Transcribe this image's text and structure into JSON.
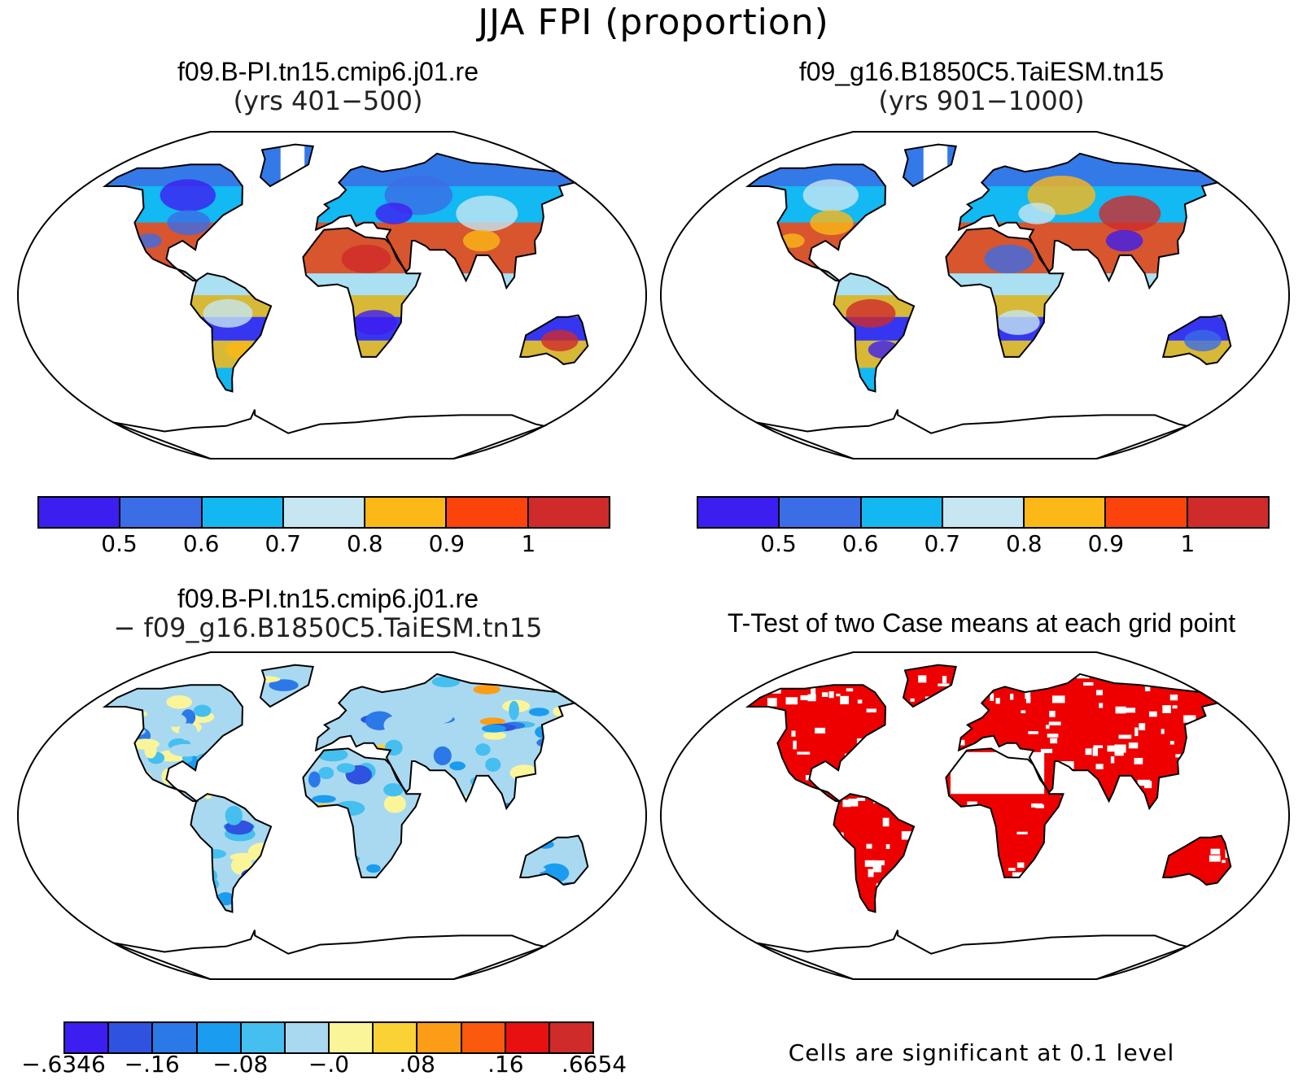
{
  "title": "JJA FPI (proportion)",
  "panels": {
    "top_left": {
      "line1": "f09.B-PI.tn15.cmip6.j01.re",
      "line2": "(yrs 401−500)"
    },
    "top_right": {
      "line1": "f09_g16.B1850C5.TaiESM.tn15",
      "line2": "(yrs 901−1000)"
    },
    "bottom_left": {
      "line1": "f09.B-PI.tn15.cmip6.j01.re",
      "line2": "− f09_g16.B1850C5.TaiESM.tn15"
    },
    "bottom_right": {
      "line1": "T-Test of two Case means at each grid point",
      "note": "Cells are significant at 0.1 level"
    }
  },
  "colorbar_abs": {
    "colors": [
      "#3d1ef0",
      "#3b6de6",
      "#13b8f2",
      "#c6e6f2",
      "#fbb816",
      "#fb430c",
      "#cf2b2b"
    ],
    "tick_labels": [
      "0.5",
      "0.6",
      "0.7",
      "0.8",
      "0.9",
      "1"
    ]
  },
  "colorbar_diff": {
    "colors": [
      "#3d1ef0",
      "#2f52e0",
      "#2b78e8",
      "#1a9cf0",
      "#44bff0",
      "#a9d9f0",
      "#fbf59a",
      "#fbd236",
      "#fb9d16",
      "#fb5a0e",
      "#e81010",
      "#cf2b2b"
    ],
    "tick_labels": [
      "−.6346",
      "−.16",
      "−.08",
      "−.0",
      ".08",
      ".16",
      ".6654"
    ]
  },
  "significance_color": "#ee0000"
}
